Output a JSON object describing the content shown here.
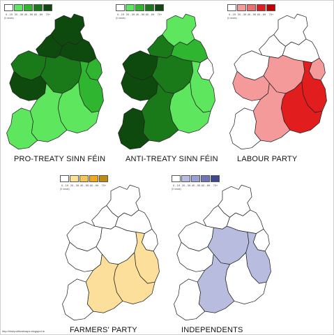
{
  "legend_ticks": [
    "0 - 19",
    "20 - 39",
    "40 - 59",
    "60 - 69",
    "70+"
  ],
  "legend_note": "(0 seats)",
  "maps": [
    {
      "label": "PRO-TREATY SINN FÉIN",
      "palette": [
        "#ffffff",
        "#5fe65f",
        "#2fb52f",
        "#1a7a1a",
        "#0e4a0e"
      ],
      "regions": {
        "donegal": 4,
        "northwest": 4,
        "north_mid": 4,
        "west": 4,
        "mayo": 3,
        "midlands": 3,
        "dublin": 2,
        "east": 2,
        "southeast": 1,
        "southwest": 1,
        "kerry": 1
      }
    },
    {
      "label": "ANTI-TREATY SINN FÉIN",
      "palette": [
        "#ffffff",
        "#5fe65f",
        "#2fb52f",
        "#1a7a1a",
        "#0e4a0e"
      ],
      "regions": {
        "donegal": 1,
        "northwest": 3,
        "north_mid": 2,
        "west": 4,
        "mayo": 4,
        "midlands": 3,
        "dublin": 0,
        "east": 1,
        "southeast": 1,
        "southwest": 3,
        "kerry": 4
      }
    },
    {
      "label": "LABOUR PARTY",
      "palette": [
        "#ffffff",
        "#f49a9a",
        "#ee6e6e",
        "#e21d1d",
        "#c00000"
      ],
      "regions": {
        "donegal": 0,
        "northwest": 0,
        "north_mid": 0,
        "west": 1,
        "mayo": 0,
        "midlands": 1,
        "dublin": 1,
        "east": 3,
        "southeast": 3,
        "southwest": 1,
        "kerry": 0
      }
    },
    {
      "label": "FARMERS' PARTY",
      "palette": [
        "#ffffff",
        "#fbdf9a",
        "#f6c55a",
        "#f0a81a",
        "#c08a10"
      ],
      "regions": {
        "donegal": 0,
        "northwest": 0,
        "north_mid": 0,
        "west": 0,
        "mayo": 0,
        "midlands": 0,
        "dublin": 0,
        "east": 1,
        "southeast": 1,
        "southwest": 1,
        "kerry": 0
      }
    },
    {
      "label": "INDEPENDENTS",
      "palette": [
        "#ffffff",
        "#b8bde0",
        "#9aa0d2",
        "#6e76b8",
        "#3e4690"
      ],
      "regions": {
        "donegal": 0,
        "northwest": 0,
        "north_mid": 0,
        "west": 0,
        "mayo": 0,
        "midlands": 1,
        "dublin": 0,
        "east": 1,
        "southeast": 0,
        "southwest": 1,
        "kerry": 0
      }
    }
  ],
  "credit": "http://irishpoliticalmaps.blogspot.ie"
}
